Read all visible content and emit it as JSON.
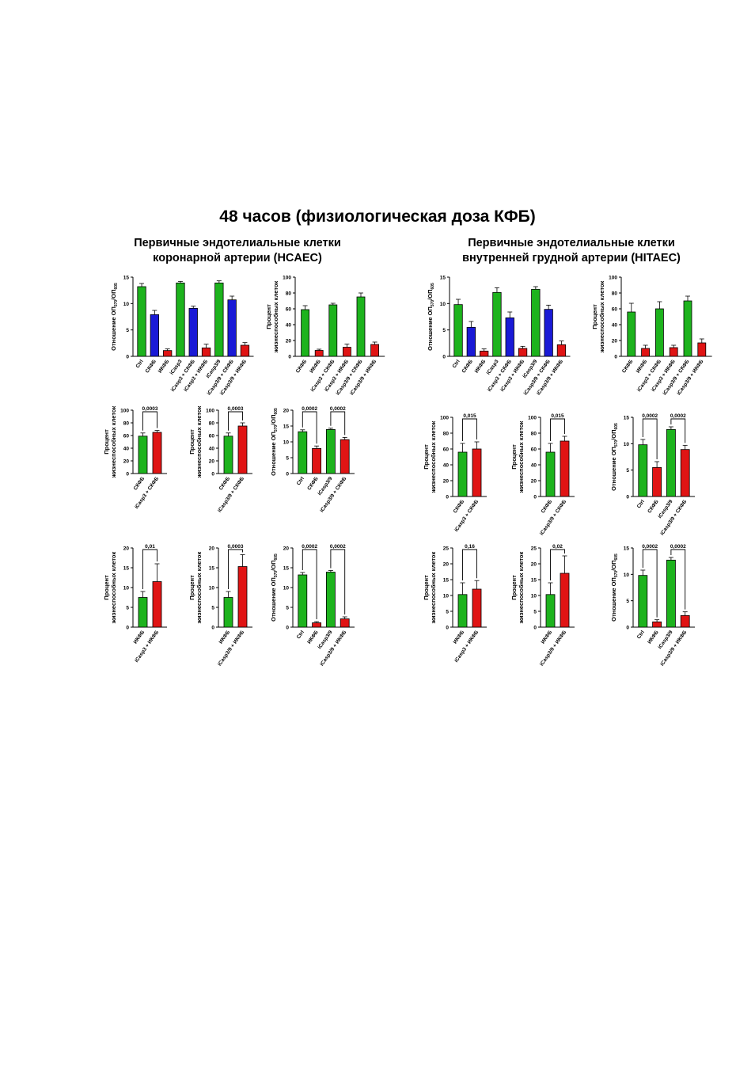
{
  "title": "48 часов (физиологическая доза КФБ)",
  "sections": [
    {
      "title": "Первичные эндотелиальные клетки\nкоронарной артерии (HCAEC)"
    },
    {
      "title": "Первичные эндотелиальные клетки\nвнутренней грудной артерии (HITAEC)"
    }
  ],
  "colors": {
    "green": "#1db31d",
    "blue": "#1a1ad6",
    "red": "#e01414"
  },
  "chart_data": [
    {
      "type": "bar",
      "section": "HCAEC",
      "ylabel": "Отношение ОП570/ОП605",
      "ylabel_main": "Отношение ОП",
      "ylabel_sub1": "570",
      "ylabel_mid": "/ОП",
      "ylabel_sub2": "605",
      "ylim": [
        0,
        15
      ],
      "yticks": [
        0,
        5,
        10,
        15
      ],
      "categories": [
        "Ctrl",
        "СКФБ",
        "ИКФБ",
        "iCasp3",
        "iCasp3 + СКФБ",
        "iCasp3 + ИКФБ",
        "iCasp3/9",
        "iCasp3/9 + СКФБ",
        "iCasp3/9 + ИКФБ"
      ],
      "values": [
        13.2,
        7.9,
        1.1,
        13.9,
        9.1,
        1.6,
        13.9,
        10.7,
        2.1
      ],
      "errors": [
        0.6,
        0.8,
        0.3,
        0.3,
        0.4,
        0.7,
        0.4,
        0.7,
        0.5
      ],
      "colors": [
        "green",
        "blue",
        "red",
        "green",
        "blue",
        "red",
        "green",
        "blue",
        "red"
      ],
      "brackets": []
    },
    {
      "type": "bar",
      "section": "HCAEC",
      "ylabel": "Процент жизнеспособных клеток",
      "ylabel_line1": "Процент",
      "ylabel_line2": "жизнеспособных клеток",
      "ylim": [
        0,
        100
      ],
      "yticks": [
        0,
        20,
        40,
        60,
        80,
        100
      ],
      "categories": [
        "СКФБ",
        "ИКФБ",
        "iCasp3 + СКФБ",
        "iCasp3 + ИКФБ",
        "iCasp3/9 + СКФБ",
        "iCasp3/9 + ИКФБ"
      ],
      "values": [
        59,
        7.5,
        65,
        11.5,
        75,
        15
      ],
      "errors": [
        5,
        1.5,
        2,
        4,
        5,
        3
      ],
      "colors": [
        "green",
        "red",
        "green",
        "red",
        "green",
        "red"
      ],
      "brackets": []
    },
    {
      "type": "bar",
      "section": "HITAEC",
      "ylabel": "Отношение ОП570/ОП605",
      "ylabel_main": "Отношение ОП",
      "ylabel_sub1": "570",
      "ylabel_mid": "/ОП",
      "ylabel_sub2": "605",
      "ylim": [
        0,
        15
      ],
      "yticks": [
        0,
        5,
        10,
        15
      ],
      "categories": [
        "Ctrl",
        "СКФБ",
        "ИКФБ",
        "iCasp3",
        "iCasp3 + СКФБ",
        "iCasp3 + ИКФБ",
        "iCasp3/9",
        "iCasp3/9 + СКФБ",
        "iCasp3/9 + ИКФБ"
      ],
      "values": [
        9.8,
        5.5,
        1.0,
        12.1,
        7.3,
        1.5,
        12.7,
        8.9,
        2.2
      ],
      "errors": [
        1.0,
        1.1,
        0.4,
        0.9,
        1.1,
        0.4,
        0.5,
        0.8,
        0.7
      ],
      "colors": [
        "green",
        "blue",
        "red",
        "green",
        "blue",
        "red",
        "green",
        "blue",
        "red"
      ],
      "brackets": []
    },
    {
      "type": "bar",
      "section": "HITAEC",
      "ylabel": "Процент жизнеспособных клеток",
      "ylabel_line1": "Процент",
      "ylabel_line2": "жизнеспособных клеток",
      "ylim": [
        0,
        100
      ],
      "yticks": [
        0,
        20,
        40,
        60,
        80,
        100
      ],
      "categories": [
        "СКФБ",
        "ИКФБ",
        "iCasp3 + СКФБ",
        "iCasp3 + ИКФБ",
        "iCasp3/9 + СКФБ",
        "iCasp3/9 + ИКФБ"
      ],
      "values": [
        56,
        10,
        60,
        11,
        70,
        17
      ],
      "errors": [
        11,
        4,
        9,
        3,
        6,
        5
      ],
      "colors": [
        "green",
        "red",
        "green",
        "red",
        "green",
        "red"
      ],
      "brackets": []
    },
    {
      "type": "bar",
      "section": "HCAEC",
      "ylabel": "Процент жизнеспособных клеток",
      "ylabel_line1": "Процент",
      "ylabel_line2": "жизнеспособных клеток",
      "ylim": [
        0,
        100
      ],
      "yticks": [
        0,
        20,
        40,
        60,
        80,
        100
      ],
      "categories": [
        "СКФБ",
        "iCasp3 + СКФБ"
      ],
      "values": [
        59,
        65
      ],
      "errors": [
        5,
        3
      ],
      "colors": [
        "green",
        "red"
      ],
      "brackets": [
        {
          "from": 0,
          "to": 1,
          "label": "0,0003"
        }
      ]
    },
    {
      "type": "bar",
      "section": "HCAEC",
      "ylabel": "Процент жизнеспособных клеток",
      "ylabel_line1": "Процент",
      "ylabel_line2": "жизнеспособных клеток",
      "ylim": [
        0,
        100
      ],
      "yticks": [
        0,
        20,
        40,
        60,
        80,
        100
      ],
      "categories": [
        "СКФБ",
        "iCasp3/9 + СКФБ"
      ],
      "values": [
        59,
        75
      ],
      "errors": [
        5,
        5
      ],
      "colors": [
        "green",
        "red"
      ],
      "brackets": [
        {
          "from": 0,
          "to": 1,
          "label": "0,0003"
        }
      ]
    },
    {
      "type": "bar",
      "section": "HCAEC",
      "ylabel": "Отношение ОП570/ОП605",
      "ylabel_main": "Отношение ОП",
      "ylabel_sub1": "570",
      "ylabel_mid": "/ОП",
      "ylabel_sub2": "605",
      "ylim": [
        0,
        20
      ],
      "yticks": [
        0,
        5,
        10,
        15,
        20
      ],
      "categories": [
        "Ctrl",
        "СКФБ",
        "iCasp3/9",
        "iCasp3/9 + СКФБ"
      ],
      "values": [
        13.2,
        7.9,
        13.9,
        10.7
      ],
      "errors": [
        0.6,
        0.8,
        0.4,
        0.7
      ],
      "colors": [
        "green",
        "red",
        "green",
        "red"
      ],
      "brackets": [
        {
          "from": 0,
          "to": 1,
          "label": "0,0002"
        },
        {
          "from": 2,
          "to": 3,
          "label": "0,0002"
        }
      ]
    },
    {
      "type": "bar",
      "section": "HITAEC",
      "ylabel": "Процент жизнеспособных клеток",
      "ylabel_line1": "Процент",
      "ylabel_line2": "жизнеспособных клеток",
      "ylim": [
        0,
        100
      ],
      "yticks": [
        0,
        20,
        40,
        60,
        80,
        100
      ],
      "categories": [
        "СКФБ",
        "iCasp3 + СКФБ"
      ],
      "values": [
        56,
        60
      ],
      "errors": [
        11,
        9
      ],
      "colors": [
        "green",
        "red"
      ],
      "brackets": [
        {
          "from": 0,
          "to": 1,
          "label": "0,015"
        }
      ]
    },
    {
      "type": "bar",
      "section": "HITAEC",
      "ylabel": "Процент жизнеспособных клеток",
      "ylabel_line1": "Процент",
      "ylabel_line2": "жизнеспособных клеток",
      "ylim": [
        0,
        100
      ],
      "yticks": [
        0,
        20,
        40,
        60,
        80,
        100
      ],
      "categories": [
        "СКФБ",
        "iCasp3/9 + СКФБ"
      ],
      "values": [
        56,
        70
      ],
      "errors": [
        11,
        6
      ],
      "colors": [
        "green",
        "red"
      ],
      "brackets": [
        {
          "from": 0,
          "to": 1,
          "label": "0,015"
        }
      ]
    },
    {
      "type": "bar",
      "section": "HITAEC",
      "ylabel": "Отношение ОП570/ОП605",
      "ylabel_main": "Отношение ОП",
      "ylabel_sub1": "570",
      "ylabel_mid": "/ОП",
      "ylabel_sub2": "605",
      "ylim": [
        0,
        15
      ],
      "yticks": [
        0,
        5,
        10,
        15
      ],
      "categories": [
        "Ctrl",
        "СКФБ",
        "iCasp3/9",
        "iCasp3/9 + СКФБ"
      ],
      "values": [
        9.8,
        5.5,
        12.7,
        8.9
      ],
      "errors": [
        1.0,
        1.1,
        0.5,
        0.8
      ],
      "colors": [
        "green",
        "red",
        "green",
        "red"
      ],
      "brackets": [
        {
          "from": 0,
          "to": 1,
          "label": "0,0002"
        },
        {
          "from": 2,
          "to": 3,
          "label": "0,0002"
        }
      ]
    },
    {
      "type": "bar",
      "section": "HCAEC",
      "ylabel": "Процент жизнеспособных клеток",
      "ylabel_line1": "Процент",
      "ylabel_line2": "жизнеспособных клеток",
      "ylim": [
        0,
        20
      ],
      "yticks": [
        0,
        5,
        10,
        15,
        20
      ],
      "categories": [
        "ИКФБ",
        "iCasp3 + ИКФБ"
      ],
      "values": [
        7.5,
        11.5
      ],
      "errors": [
        1.5,
        4.5
      ],
      "colors": [
        "green",
        "red"
      ],
      "brackets": [
        {
          "from": 0,
          "to": 1,
          "label": "0,01"
        }
      ]
    },
    {
      "type": "bar",
      "section": "HCAEC",
      "ylabel": "Процент жизнеспособных клеток",
      "ylabel_line1": "Процент",
      "ylabel_line2": "жизнеспособных клеток",
      "ylim": [
        0,
        20
      ],
      "yticks": [
        0,
        5,
        10,
        15,
        20
      ],
      "categories": [
        "ИКФБ",
        "iCasp3/9 + ИКФБ"
      ],
      "values": [
        7.5,
        15.3
      ],
      "errors": [
        1.5,
        3
      ],
      "colors": [
        "green",
        "red"
      ],
      "brackets": [
        {
          "from": 0,
          "to": 1,
          "label": "0,0003"
        }
      ]
    },
    {
      "type": "bar",
      "section": "HCAEC",
      "ylabel": "Отношение ОП570/ОП605",
      "ylabel_main": "Отношение ОП",
      "ylabel_sub1": "570",
      "ylabel_mid": "/ОП",
      "ylabel_sub2": "605",
      "ylim": [
        0,
        20
      ],
      "yticks": [
        0,
        5,
        10,
        15,
        20
      ],
      "categories": [
        "Ctrl",
        "ИКФБ",
        "iCasp3/9",
        "iCasp3/9 + ИКФБ"
      ],
      "values": [
        13.2,
        1.1,
        13.9,
        2.1
      ],
      "errors": [
        0.6,
        0.3,
        0.4,
        0.5
      ],
      "colors": [
        "green",
        "red",
        "green",
        "red"
      ],
      "brackets": [
        {
          "from": 0,
          "to": 1,
          "label": "0,0002"
        },
        {
          "from": 2,
          "to": 3,
          "label": "0,0002"
        }
      ]
    },
    {
      "type": "bar",
      "section": "HITAEC",
      "ylabel": "Процент жизнеспособных клеток",
      "ylabel_line1": "Процент",
      "ylabel_line2": "жизнеспособных клеток",
      "ylim": [
        0,
        25
      ],
      "yticks": [
        0,
        5,
        10,
        15,
        20,
        25
      ],
      "categories": [
        "ИКФБ",
        "iCasp3 + ИКФБ"
      ],
      "values": [
        10.3,
        12
      ],
      "errors": [
        3.7,
        2.7
      ],
      "colors": [
        "green",
        "red"
      ],
      "brackets": [
        {
          "from": 0,
          "to": 1,
          "label": "0,16"
        }
      ]
    },
    {
      "type": "bar",
      "section": "HITAEC",
      "ylabel": "Процент жизнеспособных клеток",
      "ylabel_line1": "Процент",
      "ylabel_line2": "жизнеспособных клеток",
      "ylim": [
        0,
        25
      ],
      "yticks": [
        0,
        5,
        10,
        15,
        20,
        25
      ],
      "categories": [
        "ИКФБ",
        "iCasp3/9 + ИКФБ"
      ],
      "values": [
        10.3,
        17
      ],
      "errors": [
        3.7,
        5.5
      ],
      "colors": [
        "green",
        "red"
      ],
      "brackets": [
        {
          "from": 0,
          "to": 1,
          "label": "0,02"
        }
      ]
    },
    {
      "type": "bar",
      "section": "HITAEC",
      "ylabel": "Отношение ОП570/ОП605",
      "ylabel_main": "Отношение ОП",
      "ylabel_sub1": "570",
      "ylabel_mid": "/ОП",
      "ylabel_sub2": "605",
      "ylim": [
        0,
        15
      ],
      "yticks": [
        0,
        5,
        10,
        15
      ],
      "categories": [
        "Ctrl",
        "ИКФБ",
        "iCasp3/9",
        "iCasp3/9 + ИКФБ"
      ],
      "values": [
        9.8,
        1.0,
        12.7,
        2.2
      ],
      "errors": [
        1.0,
        0.4,
        0.5,
        0.7
      ],
      "colors": [
        "green",
        "red",
        "green",
        "red"
      ],
      "brackets": [
        {
          "from": 0,
          "to": 1,
          "label": "0,0002"
        },
        {
          "from": 2,
          "to": 3,
          "label": "0,0002"
        }
      ]
    }
  ]
}
